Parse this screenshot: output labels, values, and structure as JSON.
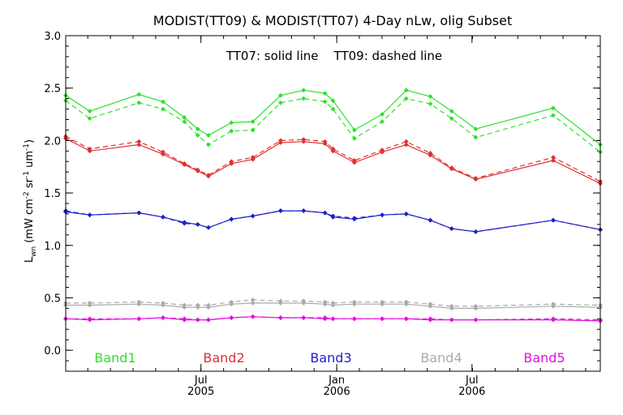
{
  "chart_data": {
    "type": "line",
    "title": "MODIST(TT09) & MODIST(TT07) 4-Day nLw, olig Subset",
    "annotation": "TT07: solid line    TT09: dashed line",
    "ylabel": {
      "main": "L",
      "sub": "wn",
      "units_prefix": "(mW cm",
      "exp1": "-2",
      "sr": " sr",
      "exp2": "-1",
      "um": " um",
      "exp3": "-1",
      "close": ")"
    },
    "ylim": [
      -0.2,
      3.0
    ],
    "yticks": [
      "0.0",
      "0.5",
      "1.0",
      "1.5",
      "2.0",
      "2.5",
      "3.0"
    ],
    "xlim": [
      0,
      1
    ],
    "xticks": [
      {
        "label": "Jul",
        "sublabel": "2005",
        "pos": 0.253
      },
      {
        "label": "Jan",
        "sublabel": "2006",
        "pos": 0.507
      },
      {
        "label": "Jul",
        "sublabel": "2006",
        "pos": 0.76
      }
    ],
    "x": [
      0.0,
      0.045,
      0.137,
      0.182,
      0.222,
      0.247,
      0.267,
      0.31,
      0.35,
      0.402,
      0.445,
      0.485,
      0.5,
      0.54,
      0.592,
      0.637,
      0.682,
      0.722,
      0.767,
      0.912,
      1.0
    ],
    "series": [
      {
        "name": "Band1",
        "color": "#2ee02e",
        "line": "solid",
        "values": [
          2.43,
          2.28,
          2.44,
          2.37,
          2.22,
          2.11,
          2.05,
          2.17,
          2.18,
          2.43,
          2.48,
          2.45,
          2.38,
          2.1,
          2.25,
          2.48,
          2.42,
          2.28,
          2.11,
          2.31,
          1.96
        ]
      },
      {
        "name": "Band1",
        "color": "#2ee02e",
        "line": "dashed",
        "values": [
          2.38,
          2.21,
          2.36,
          2.3,
          2.18,
          2.05,
          1.96,
          2.09,
          2.1,
          2.36,
          2.4,
          2.37,
          2.3,
          2.02,
          2.18,
          2.4,
          2.35,
          2.21,
          2.03,
          2.24,
          1.89
        ]
      },
      {
        "name": "Band2",
        "color": "#e03030",
        "line": "solid",
        "values": [
          2.02,
          1.9,
          1.96,
          1.87,
          1.77,
          1.71,
          1.66,
          1.78,
          1.82,
          1.98,
          1.99,
          1.97,
          1.9,
          1.79,
          1.89,
          1.96,
          1.86,
          1.73,
          1.63,
          1.81,
          1.59
        ]
      },
      {
        "name": "Band2",
        "color": "#e03030",
        "line": "dashed",
        "values": [
          2.04,
          1.92,
          1.99,
          1.89,
          1.78,
          1.72,
          1.67,
          1.8,
          1.84,
          2.0,
          2.01,
          1.99,
          1.92,
          1.81,
          1.91,
          1.99,
          1.88,
          1.74,
          1.64,
          1.84,
          1.61
        ]
      },
      {
        "name": "Band3",
        "color": "#2020c8",
        "line": "solid",
        "values": [
          1.32,
          1.29,
          1.31,
          1.27,
          1.22,
          1.2,
          1.17,
          1.25,
          1.28,
          1.33,
          1.33,
          1.31,
          1.27,
          1.25,
          1.29,
          1.3,
          1.24,
          1.16,
          1.13,
          1.24,
          1.15
        ]
      },
      {
        "name": "Band3",
        "color": "#2020c8",
        "line": "dashed",
        "values": [
          1.33,
          1.29,
          1.31,
          1.27,
          1.21,
          1.2,
          1.17,
          1.25,
          1.28,
          1.33,
          1.33,
          1.31,
          1.28,
          1.26,
          1.29,
          1.3,
          1.24,
          1.16,
          1.13,
          1.24,
          1.15
        ]
      },
      {
        "name": "Band4",
        "color": "#aaaaaa",
        "line": "solid",
        "values": [
          0.43,
          0.43,
          0.44,
          0.43,
          0.41,
          0.41,
          0.41,
          0.44,
          0.45,
          0.45,
          0.45,
          0.44,
          0.43,
          0.44,
          0.44,
          0.44,
          0.42,
          0.4,
          0.4,
          0.42,
          0.41
        ]
      },
      {
        "name": "Band4",
        "color": "#aaaaaa",
        "line": "dashed",
        "values": [
          0.45,
          0.45,
          0.46,
          0.45,
          0.43,
          0.43,
          0.43,
          0.46,
          0.48,
          0.47,
          0.47,
          0.46,
          0.45,
          0.46,
          0.46,
          0.46,
          0.44,
          0.42,
          0.42,
          0.44,
          0.43
        ]
      },
      {
        "name": "Band5",
        "color": "#e010e0",
        "line": "solid",
        "values": [
          0.3,
          0.29,
          0.3,
          0.31,
          0.29,
          0.29,
          0.29,
          0.31,
          0.32,
          0.31,
          0.31,
          0.3,
          0.3,
          0.3,
          0.3,
          0.3,
          0.29,
          0.29,
          0.29,
          0.29,
          0.28
        ]
      },
      {
        "name": "Band5",
        "color": "#e010e0",
        "line": "dashed",
        "values": [
          0.3,
          0.3,
          0.3,
          0.31,
          0.3,
          0.29,
          0.29,
          0.31,
          0.32,
          0.31,
          0.31,
          0.31,
          0.3,
          0.3,
          0.3,
          0.3,
          0.3,
          0.29,
          0.29,
          0.3,
          0.29
        ]
      }
    ],
    "legend": [
      {
        "label": "Band1",
        "color": "#2ee02e"
      },
      {
        "label": "Band2",
        "color": "#e03030"
      },
      {
        "label": "Band3",
        "color": "#2020c8"
      },
      {
        "label": "Band4",
        "color": "#aaaaaa"
      },
      {
        "label": "Band5",
        "color": "#e010e0"
      }
    ],
    "legend_placement": "bottom-inside",
    "grid": false
  }
}
